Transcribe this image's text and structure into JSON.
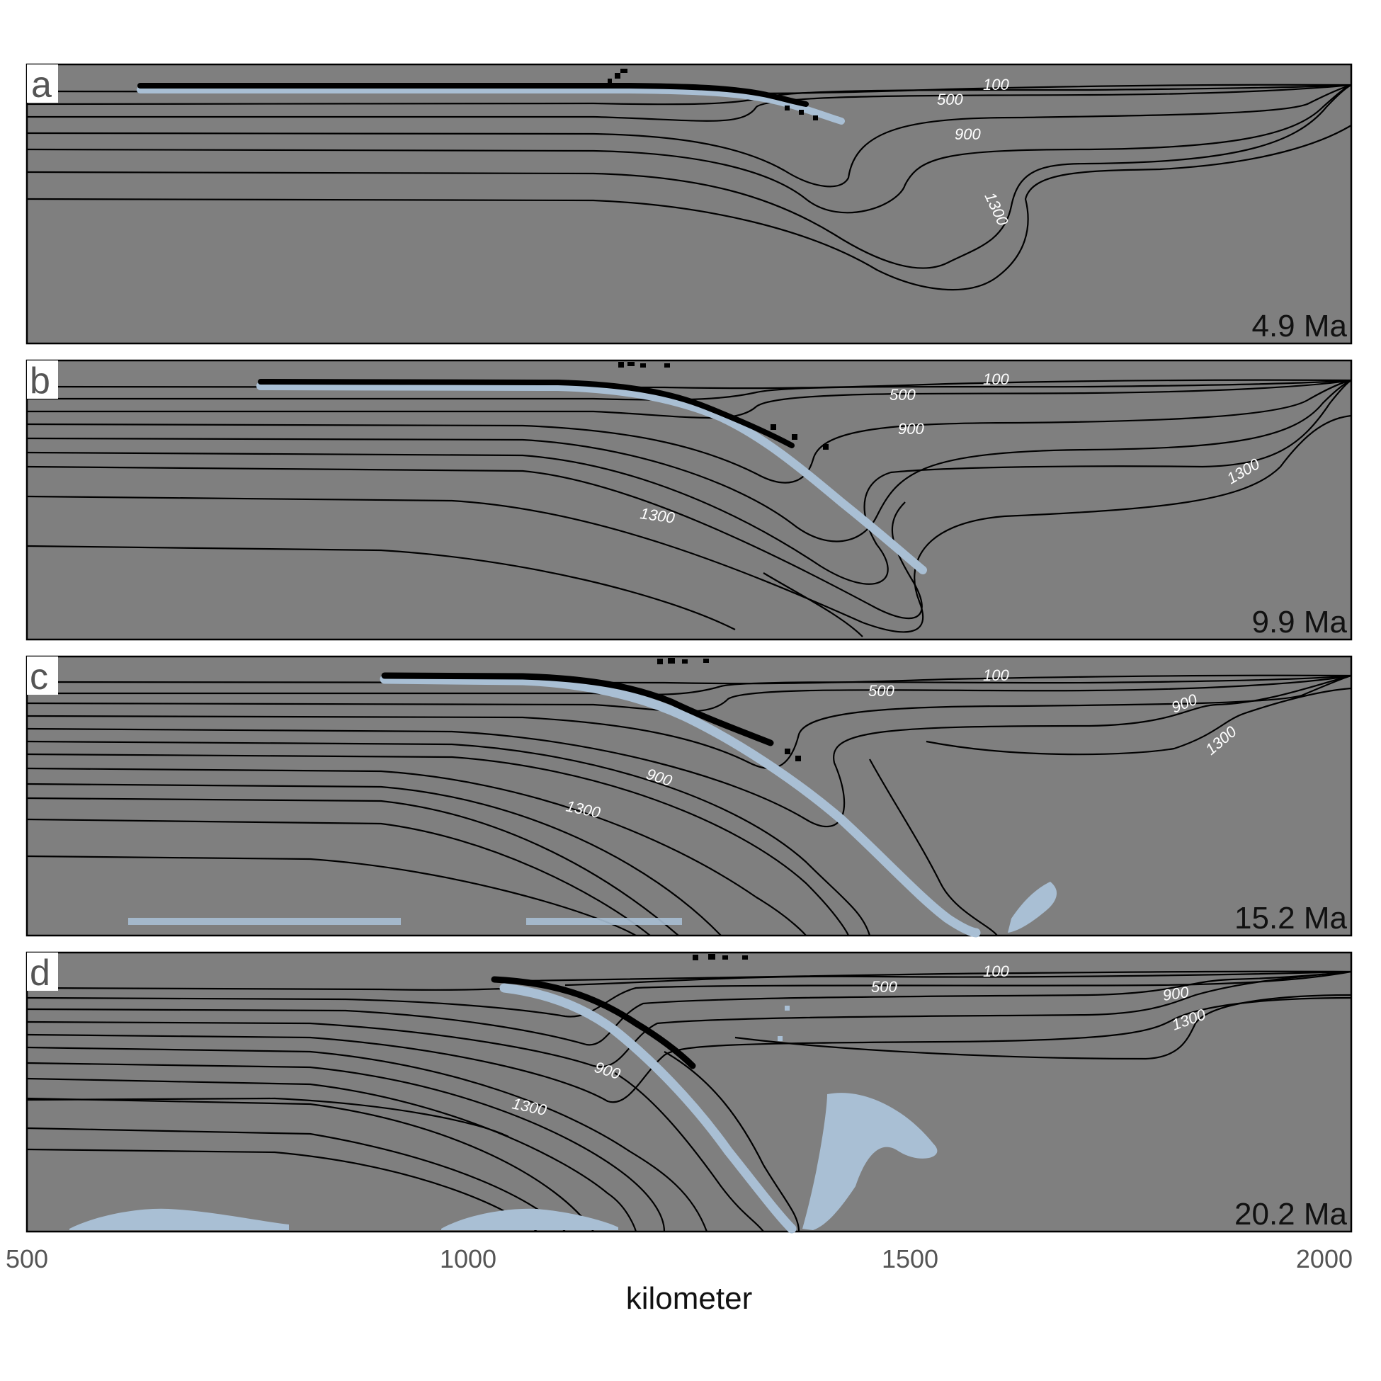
{
  "chart_data": {
    "type": "contour",
    "xlabel": "kilometer",
    "xlim": [
      500,
      2000
    ],
    "xticks": [
      "500",
      "1000",
      "1500",
      "2000"
    ],
    "panels": [
      {
        "letter": "a",
        "time": "4.9 Ma",
        "contour_labels": [
          "100",
          "500",
          "900",
          "1300"
        ],
        "slab_x_range_km": [
          630,
          1400
        ]
      },
      {
        "letter": "b",
        "time": "9.9 Ma",
        "contour_labels": [
          "100",
          "500",
          "900",
          "1300",
          "1300"
        ],
        "slab_x_range_km": [
          760,
          1515
        ]
      },
      {
        "letter": "c",
        "time": "15.2 Ma",
        "contour_labels": [
          "100",
          "500",
          "900",
          "1300",
          "900",
          "1300"
        ],
        "slab_x_range_km": [
          900,
          1575
        ]
      },
      {
        "letter": "d",
        "time": "20.2 Ma",
        "contour_labels": [
          "100",
          "500",
          "900",
          "1300",
          "900",
          "1300"
        ],
        "slab_x_range_km": [
          1040,
          1505
        ]
      }
    ]
  }
}
